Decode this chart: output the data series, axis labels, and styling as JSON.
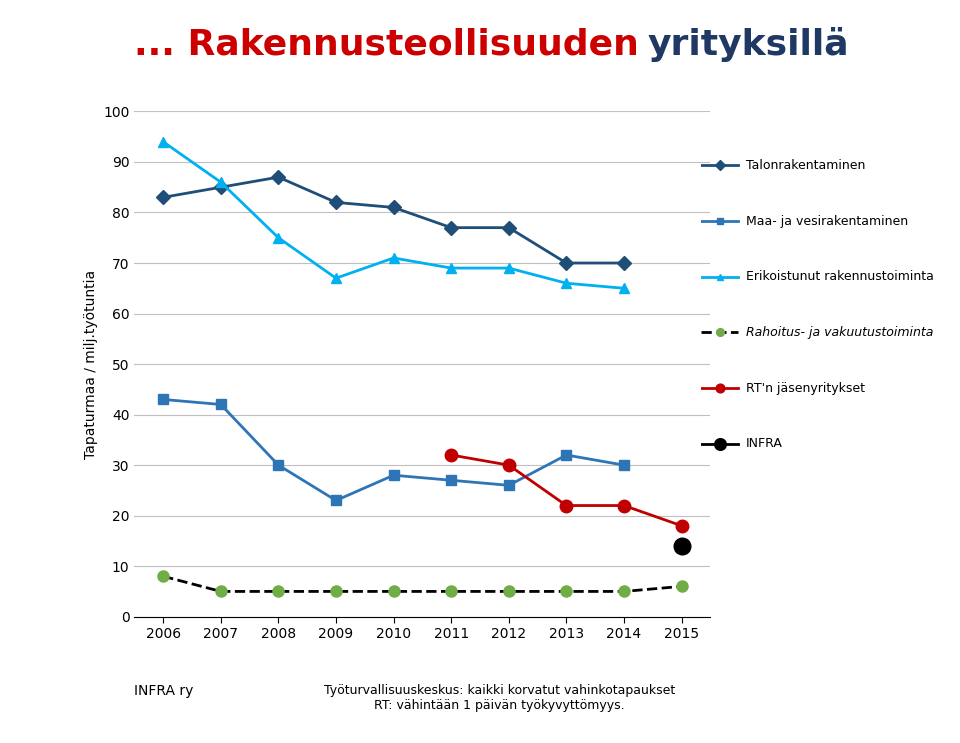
{
  "title_part1": "... Rakennusteollisuuden ",
  "title_part2": "yrityksillä",
  "title_color1": "#CC0000",
  "title_color2": "#1F3864",
  "ylabel": "Tapaturmaa / milj.työtuntia",
  "years": [
    2006,
    2007,
    2008,
    2009,
    2010,
    2011,
    2012,
    2013,
    2014,
    2015
  ],
  "talonrakentaminen": [
    83,
    85,
    87,
    82,
    81,
    77,
    77,
    70,
    70,
    null
  ],
  "maa_ja_vesirakentaminen": [
    43,
    42,
    30,
    23,
    28,
    27,
    26,
    32,
    30,
    null
  ],
  "erikoistunut": [
    94,
    86,
    75,
    67,
    71,
    69,
    69,
    66,
    65,
    null
  ],
  "rahoitus": [
    8,
    5,
    5,
    5,
    5,
    5,
    5,
    5,
    5,
    6
  ],
  "rt_jasenyritykset": [
    null,
    null,
    null,
    null,
    null,
    32,
    30,
    22,
    22,
    18
  ],
  "infra": [
    null,
    null,
    null,
    null,
    null,
    null,
    null,
    null,
    null,
    14
  ],
  "color_talonrakentaminen": "#1F4E79",
  "color_maa": "#2E75B6",
  "color_erikoistunut": "#00B0F0",
  "color_rahoitus": "#70AD47",
  "color_rt": "#C00000",
  "color_infra": "#000000",
  "footer_left": "INFRA ry",
  "footer_right": "Työturvallisuuskeskus: kaikki korvatut vahinkotapaukset\nRT: vähintään 1 päivän työkyvyttömyys.",
  "ylim": [
    0,
    100
  ],
  "xlim": [
    2005.5,
    2015.5
  ],
  "background_color": "#FFFFFF",
  "grid_color": "#C0C0C0"
}
